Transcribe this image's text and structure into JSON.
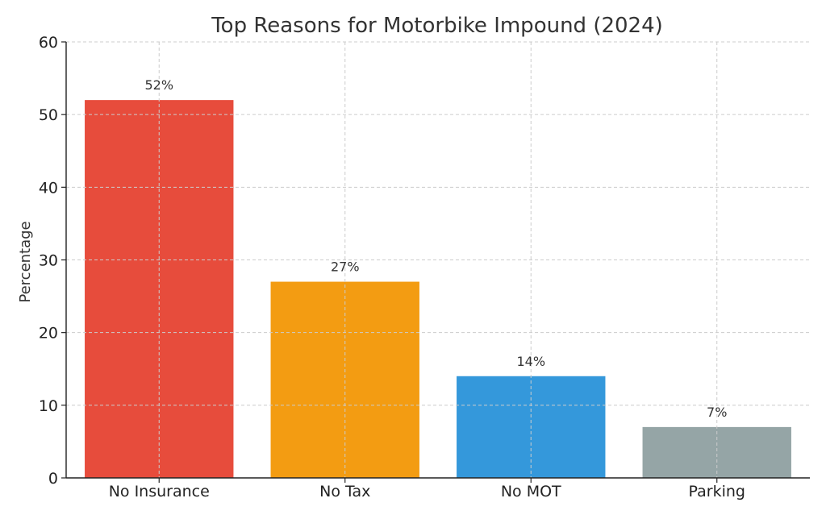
{
  "chart_data": {
    "type": "bar",
    "title": "Top Reasons for Motorbike Impound (2024)",
    "xlabel": "",
    "ylabel": "Percentage",
    "categories": [
      "No Insurance",
      "No Tax",
      "No MOT",
      "Parking"
    ],
    "values": [
      52,
      27,
      14,
      7
    ],
    "data_labels": [
      "52%",
      "27%",
      "14%",
      "7%"
    ],
    "colors": [
      "#e74c3c",
      "#f39c12",
      "#3498db",
      "#95a5a6"
    ],
    "ylim": [
      0,
      60
    ],
    "yticks": [
      0,
      10,
      20,
      30,
      40,
      50,
      60
    ],
    "grid": true,
    "legend": "none"
  }
}
